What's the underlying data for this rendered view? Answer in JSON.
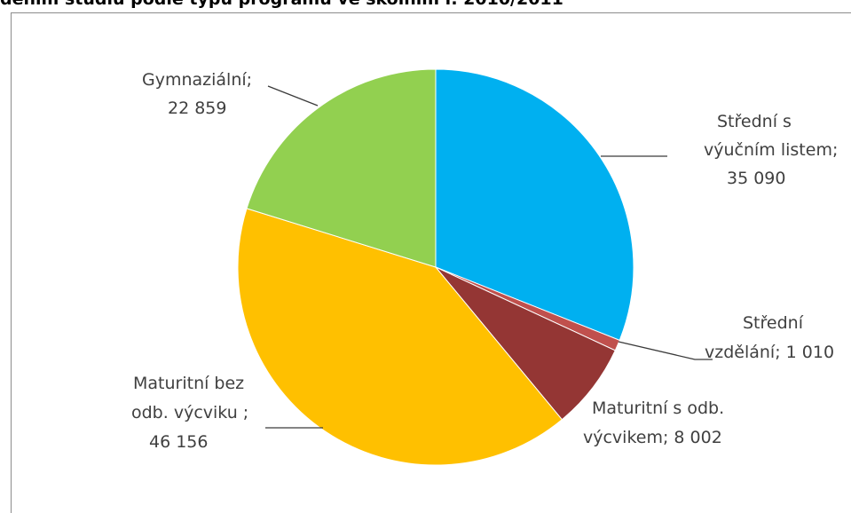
{
  "title": "dením studiu podle typu programu ve školním r. 2010/2011",
  "chart_data": {
    "type": "pie",
    "start_angle_deg": 0,
    "direction": "clockwise",
    "slices": [
      {
        "label_lines": [
          "Střední s",
          "výučním listem;",
          "35 090"
        ],
        "value": 35090,
        "color": "#00b0f0"
      },
      {
        "label_lines": [
          "Střední",
          "vzdělání; 1 010"
        ],
        "value": 1010,
        "color": "#c0504d"
      },
      {
        "label_lines": [
          "Maturitní s odb.",
          "výcvikem; 8 002"
        ],
        "value": 8002,
        "color": "#943634"
      },
      {
        "label_lines": [
          "Maturitní bez",
          "odb. výcviku ;",
          "46 156"
        ],
        "value": 46156,
        "color": "#ffc000"
      },
      {
        "label_lines": [
          "Gymnaziální;",
          "22 859"
        ],
        "value": 22859,
        "color": "#92d050"
      }
    ]
  }
}
